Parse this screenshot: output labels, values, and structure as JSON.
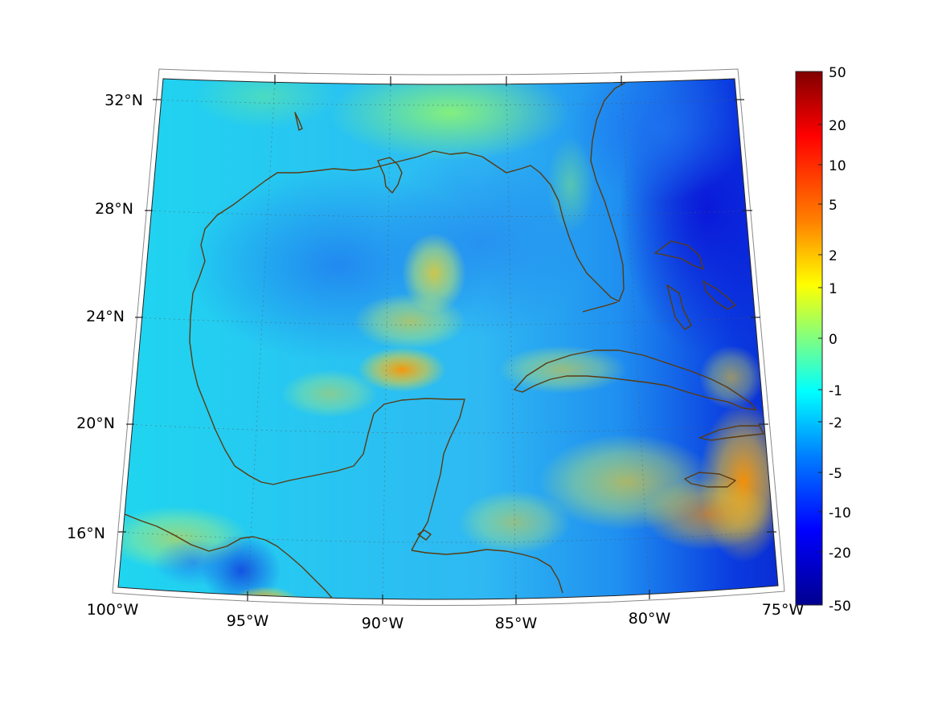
{
  "map": {
    "lat_labels": [
      "32°N",
      "28°N",
      "24°N",
      "20°N",
      "16°N"
    ],
    "lon_labels": [
      "100°W",
      "95°W",
      "90°W",
      "85°W",
      "80°W",
      "75°W"
    ],
    "extent": {
      "lon_min": -100,
      "lon_max": -75,
      "lat_min": 14,
      "lat_max": 33
    },
    "projection": "conic",
    "coastline_color": "#5a3a10",
    "graticule_style": "dotted"
  },
  "colorbar": {
    "labels": [
      "50",
      "20",
      "10",
      "5",
      "2",
      "1",
      "0",
      "-1",
      "-2",
      "-5",
      "-10",
      "-20",
      "-50"
    ],
    "colormap": "jet",
    "orientation": "vertical",
    "top_color": "#800000",
    "bottom_color": "#00008f"
  }
}
